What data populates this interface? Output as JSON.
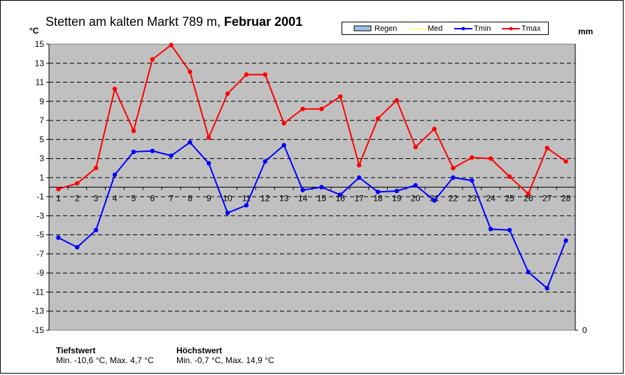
{
  "title": {
    "station": "Stetten am kalten Markt 789 m,",
    "period": "Februar 2001"
  },
  "units": {
    "left": "°C",
    "right": "mm"
  },
  "legend": {
    "placement": "top-right",
    "items": [
      {
        "label": "Regen",
        "color": "#9ec3eb",
        "kind": "bar"
      },
      {
        "label": "Med",
        "color": "#ffff00",
        "kind": "line"
      },
      {
        "label": "Tmin",
        "color": "#0000ff",
        "kind": "line"
      },
      {
        "label": "Tmax",
        "color": "#ff0000",
        "kind": "line"
      }
    ]
  },
  "footer": {
    "low_heading": "Tiefstwert",
    "low_text": "Min. -10,6 °C, Max. 4,7 °C",
    "high_heading": "Höchstwert",
    "high_text": "Min. -0,7 °C, Max. 14,9 °C"
  },
  "chart_data": {
    "type": "line",
    "x": [
      1,
      2,
      3,
      4,
      5,
      6,
      7,
      8,
      9,
      10,
      11,
      12,
      13,
      14,
      15,
      16,
      17,
      18,
      19,
      20,
      21,
      22,
      23,
      24,
      25,
      26,
      27,
      28
    ],
    "ylim": [
      -15,
      15
    ],
    "y_ticks": [
      15,
      13,
      11,
      9,
      7,
      5,
      3,
      1,
      -1,
      -3,
      -5,
      -7,
      -9,
      -11,
      -13,
      -15
    ],
    "y2_ticks": [
      "0"
    ],
    "grid": "horizontal dashed",
    "plot_background": "#c0c0c0",
    "series": [
      {
        "name": "Tmin",
        "color": "#0000ff",
        "values": [
          -5.3,
          -6.3,
          -4.5,
          1.3,
          3.7,
          3.8,
          3.3,
          4.7,
          2.5,
          -2.7,
          -1.9,
          2.7,
          4.4,
          -0.3,
          0.0,
          -0.8,
          1.0,
          -0.5,
          -0.4,
          0.2,
          -1.4,
          1.0,
          0.7,
          -4.4,
          -4.5,
          -8.9,
          -10.6,
          -5.6
        ]
      },
      {
        "name": "Tmax",
        "color": "#ff0000",
        "values": [
          -0.2,
          0.4,
          2.0,
          10.3,
          5.9,
          13.4,
          14.9,
          12.1,
          5.2,
          9.8,
          11.8,
          11.8,
          6.7,
          8.2,
          8.2,
          9.5,
          2.3,
          7.2,
          9.1,
          4.2,
          6.1,
          2.0,
          3.1,
          3.0,
          1.1,
          -0.7,
          4.1,
          2.7
        ]
      }
    ]
  }
}
